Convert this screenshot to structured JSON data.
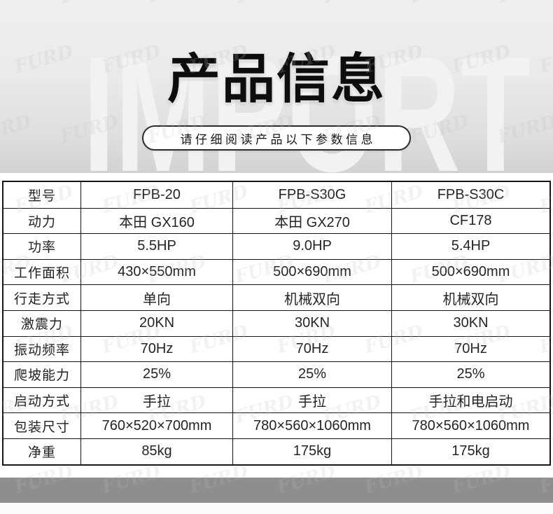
{
  "backdrop": {
    "text": "IMPORT"
  },
  "brand_watermark": {
    "text": "FURD"
  },
  "header": {
    "title": "产品信息",
    "subtitle": "请仔细阅读产品以下参数信息"
  },
  "spec_table": {
    "rows": [
      {
        "label": "型号",
        "values": [
          "FPB-20",
          "FPB-S30G",
          "FPB-S30C"
        ]
      },
      {
        "label": "动力",
        "values": [
          "本田 GX160",
          "本田 GX270",
          "CF178"
        ]
      },
      {
        "label": "功率",
        "values": [
          "5.5HP",
          "9.0HP",
          "5.4HP"
        ]
      },
      {
        "label": "工作面积",
        "values": [
          "430×550mm",
          "500×690mm",
          "500×690mm"
        ]
      },
      {
        "label": "行走方式",
        "values": [
          "单向",
          "机械双向",
          "机械双向"
        ]
      },
      {
        "label": "激震力",
        "values": [
          "20KN",
          "30KN",
          "30KN"
        ]
      },
      {
        "label": "振动频率",
        "values": [
          "70Hz",
          "70Hz",
          "70Hz"
        ]
      },
      {
        "label": "爬坡能力",
        "values": [
          "25%",
          "25%",
          "25%"
        ]
      },
      {
        "label": "启动方式",
        "values": [
          "手拉",
          "手拉",
          "手拉和电启动"
        ]
      },
      {
        "label": "包装尺寸",
        "values": [
          "760×520×700mm",
          "780×560×1060mm",
          "780×560×1060mm"
        ]
      },
      {
        "label": "净重",
        "values": [
          "85kg",
          "175kg",
          "175kg"
        ]
      }
    ]
  },
  "colors": {
    "table_border": "#161616",
    "top_zone_gray": "#e9e9e9",
    "footer_bar_gray": "#8e8e8e",
    "title_black": "#0d0d0d"
  }
}
